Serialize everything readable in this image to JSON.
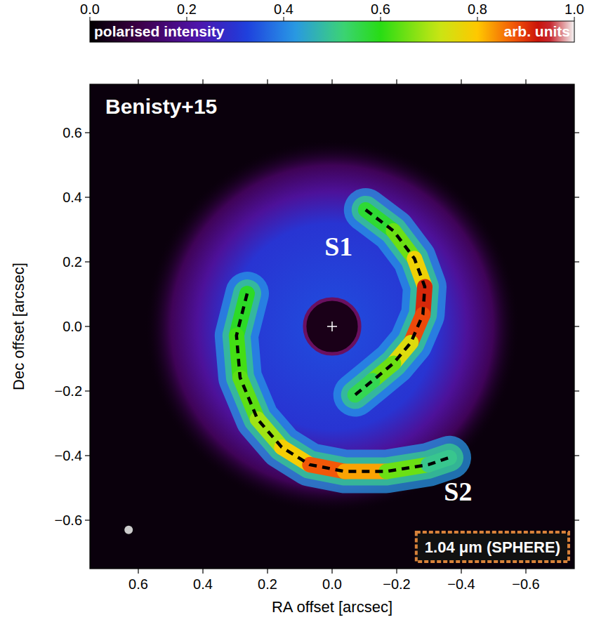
{
  "chart_data": {
    "type": "image",
    "reference": "Benisty+15",
    "band": "1.04 μm (SPHERE)",
    "x_label": "RA offset [arcsec]",
    "y_label": "Dec offset [arcsec]",
    "xlim": [
      0.75,
      -0.75
    ],
    "ylim": [
      -0.75,
      0.75
    ],
    "xticks": [
      0.6,
      0.4,
      0.2,
      {
        "value": 0,
        "label": "0.0"
      },
      {
        "value": -0.2,
        "label": "−0.2"
      },
      {
        "value": -0.4,
        "label": "−0.4"
      },
      {
        "value": -0.6,
        "label": "−0.6"
      }
    ],
    "yticks": [
      {
        "value": -0.6,
        "label": "−0.6"
      },
      {
        "value": -0.4,
        "label": "−0.4"
      },
      {
        "value": -0.2,
        "label": "−0.2"
      },
      {
        "value": 0,
        "label": "0.0"
      },
      0.2,
      0.4,
      0.6
    ],
    "colorbar_label": "polarised intensity",
    "colorbar_units": "arb. units",
    "colorbar_lim": [
      0,
      1
    ],
    "colorbar_ticks": [
      {
        "value": 0,
        "label": "0.0"
      },
      0.2,
      0.4,
      0.6,
      0.8,
      {
        "value": 1,
        "label": "1.0"
      }
    ],
    "arms": [
      {
        "name": "S1",
        "ra": [
          -0.104,
          -0.19,
          -0.255,
          -0.287,
          -0.281,
          -0.244,
          -0.19,
          -0.125,
          -0.071
        ],
        "dec": [
          0.361,
          0.296,
          0.21,
          0.123,
          0.037,
          -0.05,
          -0.114,
          -0.168,
          -0.212
        ],
        "intensity": [
          0.55,
          0.6,
          0.7,
          0.85,
          0.97,
          0.8,
          0.7,
          0.6,
          0.5
        ]
      },
      {
        "name": "S2",
        "ra": [
          0.263,
          0.296,
          0.285,
          0.231,
          0.156,
          0.069,
          -0.039,
          -0.168,
          -0.298,
          -0.363
        ],
        "dec": [
          0.102,
          -0.028,
          -0.158,
          -0.287,
          -0.374,
          -0.428,
          -0.449,
          -0.449,
          -0.428,
          -0.406
        ],
        "intensity": [
          0.55,
          0.62,
          0.62,
          0.66,
          0.72,
          0.85,
          0.9,
          0.75,
          0.55,
          0.45
        ]
      }
    ]
  }
}
